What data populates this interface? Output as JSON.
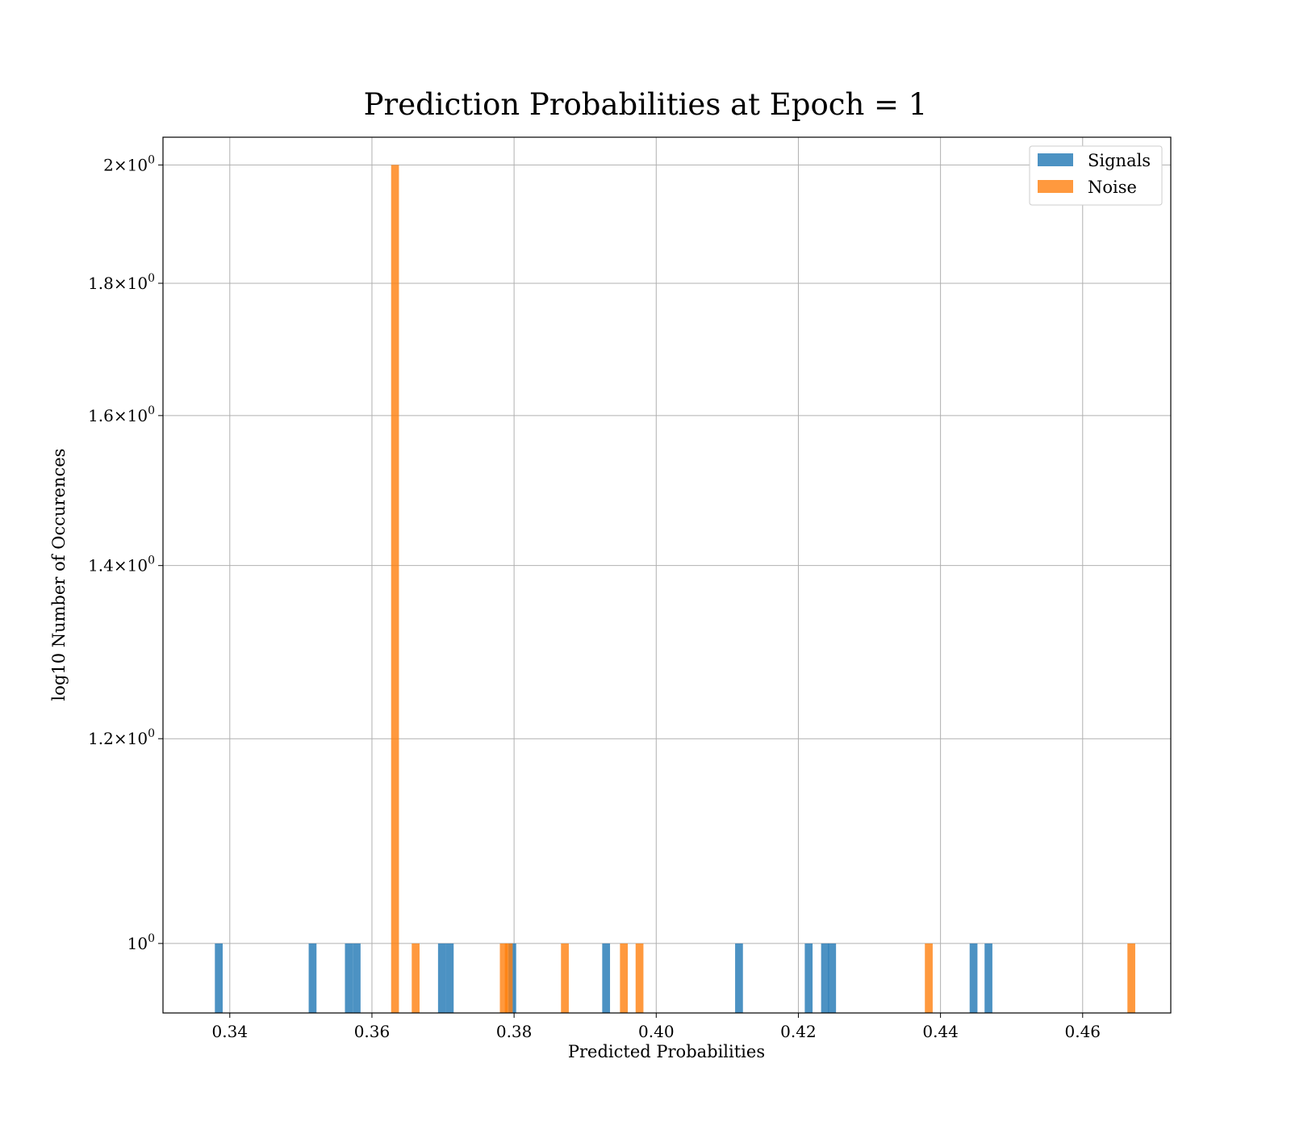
{
  "chart_data": {
    "type": "bar",
    "title": "Prediction Probabilities at Epoch = 1",
    "xlabel": "Predicted Probabilities",
    "ylabel": "log10 Number of Occurences",
    "xlim": [
      0.3306,
      0.4724
    ],
    "ylim": [
      0.94,
      2.05
    ],
    "yscale": "log",
    "grid": true,
    "legend_position": "top-right",
    "x_ticks": [
      {
        "value": 0.34,
        "label": "0.34"
      },
      {
        "value": 0.36,
        "label": "0.36"
      },
      {
        "value": 0.38,
        "label": "0.38"
      },
      {
        "value": 0.4,
        "label": "0.40"
      },
      {
        "value": 0.42,
        "label": "0.42"
      },
      {
        "value": 0.44,
        "label": "0.44"
      },
      {
        "value": 0.46,
        "label": "0.46"
      }
    ],
    "y_ticks": [
      {
        "value": 1.0,
        "base": "10",
        "exp": "0",
        "mult": ""
      },
      {
        "value": 1.2,
        "base": "1.2×10",
        "exp": "0",
        "mult": ""
      },
      {
        "value": 1.4,
        "base": "1.4×10",
        "exp": "0",
        "mult": ""
      },
      {
        "value": 1.6,
        "base": "1.6×10",
        "exp": "0",
        "mult": ""
      },
      {
        "value": 1.8,
        "base": "1.8×10",
        "exp": "0",
        "mult": ""
      },
      {
        "value": 2.0,
        "base": "2×10",
        "exp": "0",
        "mult": ""
      }
    ],
    "series": [
      {
        "name": "Signals",
        "color": "#1f77b4",
        "bin_width": 0.0011,
        "bins": [
          {
            "x": 0.3379,
            "count": 1
          },
          {
            "x": 0.3511,
            "count": 1
          },
          {
            "x": 0.3562,
            "count": 1
          },
          {
            "x": 0.3573,
            "count": 1
          },
          {
            "x": 0.3693,
            "count": 1
          },
          {
            "x": 0.3704,
            "count": 1
          },
          {
            "x": 0.3792,
            "count": 1
          },
          {
            "x": 0.3924,
            "count": 1
          },
          {
            "x": 0.4111,
            "count": 1
          },
          {
            "x": 0.4209,
            "count": 1
          },
          {
            "x": 0.4232,
            "count": 1
          },
          {
            "x": 0.4242,
            "count": 1
          },
          {
            "x": 0.4441,
            "count": 1
          },
          {
            "x": 0.4462,
            "count": 1
          }
        ]
      },
      {
        "name": "Noise",
        "color": "#ff7f0e",
        "bin_width": 0.0011,
        "bins": [
          {
            "x": 0.3627,
            "count": 2
          },
          {
            "x": 0.3656,
            "count": 1
          },
          {
            "x": 0.378,
            "count": 1
          },
          {
            "x": 0.3787,
            "count": 1
          },
          {
            "x": 0.3866,
            "count": 1
          },
          {
            "x": 0.3949,
            "count": 1
          },
          {
            "x": 0.3971,
            "count": 1
          },
          {
            "x": 0.4378,
            "count": 1
          },
          {
            "x": 0.4663,
            "count": 1
          }
        ]
      }
    ]
  }
}
